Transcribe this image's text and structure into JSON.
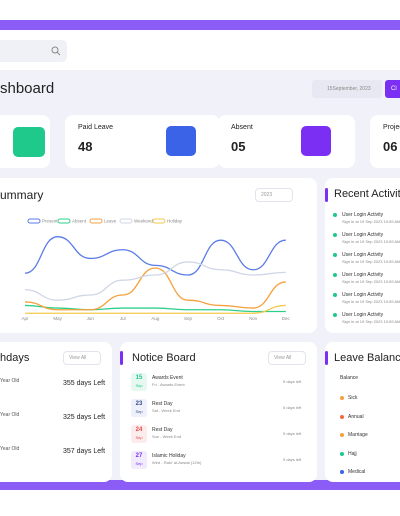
{
  "header": {
    "title": "shboard",
    "date": "15September, 2023",
    "button": "Cl"
  },
  "cards": [
    {
      "label": "Paid Leave",
      "value": "48"
    },
    {
      "label": "Absent",
      "value": "05"
    },
    {
      "label": "Projec",
      "value": "06"
    }
  ],
  "chart_panel": {
    "title": "ummary",
    "filter": "2023"
  },
  "chart_data": {
    "type": "line",
    "categories": [
      "Apr",
      "May",
      "Jun",
      "Jul",
      "Aug",
      "Sep",
      "Oct",
      "Nov",
      "Dec"
    ],
    "ylim": [
      0,
      100
    ],
    "series": [
      {
        "name": "Present",
        "color": "#5b7be8",
        "values": [
          48,
          90,
          65,
          75,
          57,
          46,
          86,
          52,
          86
        ]
      },
      {
        "name": "Absent",
        "color": "#2ecf8a",
        "values": [
          11,
          8,
          6,
          8,
          8,
          6,
          6,
          4,
          4
        ]
      },
      {
        "name": "Leave",
        "color": "#f5a03c",
        "values": [
          15,
          6,
          6,
          23,
          54,
          17,
          11,
          8,
          38
        ]
      },
      {
        "name": "Weekend",
        "color": "#cfd6e6",
        "values": [
          29,
          17,
          23,
          40,
          46,
          61,
          52,
          46,
          49
        ]
      },
      {
        "name": "Holiday",
        "color": "#f2c94c",
        "values": [
          2,
          2,
          2,
          2,
          2,
          2,
          2,
          2,
          11
        ]
      }
    ]
  },
  "recent_activity": {
    "title": "Recent Activit",
    "items": [
      {
        "title": "User Login Activity",
        "time": "Sign in at 19 Sep 2023 10:59 AM"
      },
      {
        "title": "User Login Activity",
        "time": "Sign in at 19 Sep 2023 10:59 AM"
      },
      {
        "title": "User Login Activity",
        "time": "Sign in at 19 Sep 2023 10:59 AM"
      },
      {
        "title": "User Login Activity",
        "time": "Sign in at 19 Sep 2023 10:59 AM"
      },
      {
        "title": "User Login Activity",
        "time": "Sign in at 19 Sep 2023 10:59 AM"
      },
      {
        "title": "User Login Activity",
        "time": "Sign in at 19 Sep 2023 10:59 AM"
      }
    ]
  },
  "birthdays": {
    "title": "hdays",
    "filter": "View All",
    "items": [
      {
        "label": "Year Old",
        "days": "355 days Left"
      },
      {
        "label": "Year Old",
        "days": "325 days Left"
      },
      {
        "label": "Year Old",
        "days": "357 days Left"
      }
    ]
  },
  "notices": {
    "title": "Notice Board",
    "filter": "View All",
    "items": [
      {
        "day": "15",
        "month": "Sep",
        "title": "Awards Event",
        "subtitle": "Fri - Awards Event",
        "left": "5 days left"
      },
      {
        "day": "23",
        "month": "Sep",
        "title": "Rest Day",
        "subtitle": "Sat - Week End",
        "left": "5 days left"
      },
      {
        "day": "24",
        "month": "Sep",
        "title": "Rest Day",
        "subtitle": "Sun - Week End",
        "left": "5 days left"
      },
      {
        "day": "27",
        "month": "Sep",
        "title": "Islamic Holiday",
        "subtitle": "Wed - Rabi' al-Awwal (12th)",
        "left": "5 days left"
      }
    ]
  },
  "leave_balance": {
    "title": "Leave Balanc",
    "header": "Balance",
    "items": [
      "Sick",
      "Annual",
      "Marriage",
      "Hajj",
      "Medical"
    ]
  }
}
